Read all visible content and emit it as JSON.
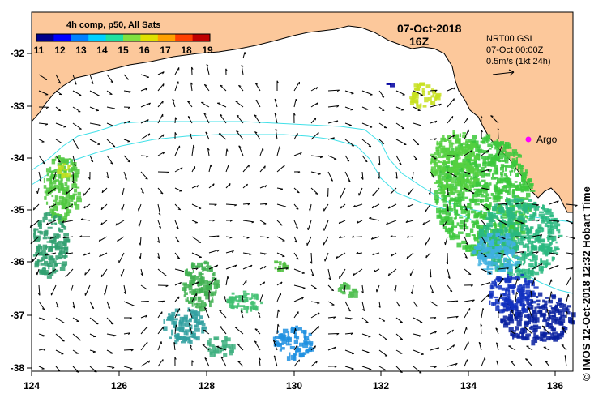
{
  "colorbar": {
    "title": "4h comp, p50, All Sats",
    "ticks": [
      "11",
      "12",
      "13",
      "14",
      "15",
      "16",
      "17",
      "18",
      "19"
    ],
    "colors": [
      "#00008b",
      "#0000ff",
      "#0080ff",
      "#00d0ff",
      "#20e0a0",
      "#80e040",
      "#e0e000",
      "#ffa000",
      "#ff4000",
      "#c00000"
    ]
  },
  "timestamp": {
    "date": "07-Oct-2018",
    "hour": "16Z"
  },
  "current_legend": {
    "line1": "NRT00 GSL",
    "line2": "07-Oct 00:00Z",
    "line3": "0.5m/s (1kt 24h)"
  },
  "argo_label": "Argo",
  "x_axis": {
    "ticks": [
      "124",
      "126",
      "128",
      "130",
      "132",
      "134",
      "136"
    ]
  },
  "y_axis": {
    "ticks": [
      "-32",
      "-33",
      "-34",
      "-35",
      "-36",
      "-37",
      "-38"
    ]
  },
  "credit": "©  IMOS 12-Oct-2018 12:32 Hobart Time",
  "colors": {
    "land": "#fcc89b",
    "ocean": "#ffffff",
    "isobath": "#40e0e8",
    "argo": "#ff00ff"
  }
}
